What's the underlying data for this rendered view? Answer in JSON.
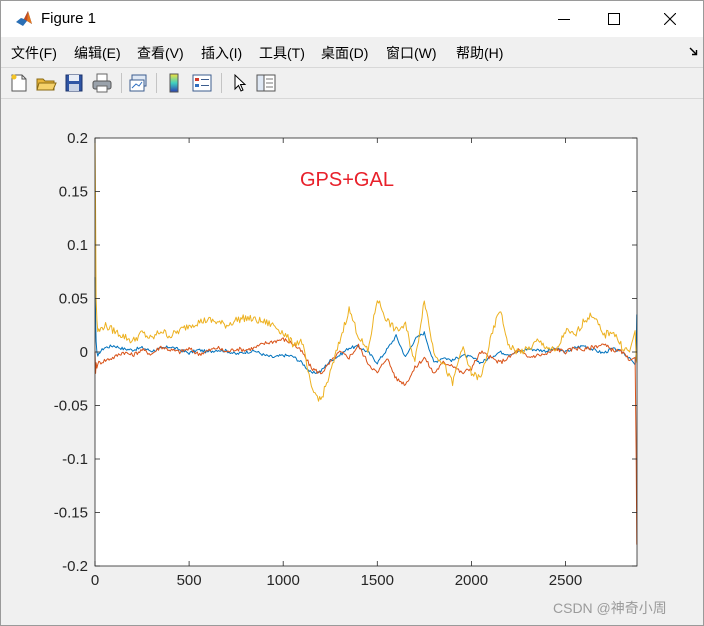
{
  "window": {
    "title": "Figure 1",
    "icon": "matlab-logo-icon",
    "controls": [
      "minimize-icon",
      "maximize-icon",
      "close-icon"
    ]
  },
  "menu": {
    "items": [
      "文件(F)",
      "编辑(E)",
      "查看(V)",
      "插入(I)",
      "工具(T)",
      "桌面(D)",
      "窗口(W)",
      "帮助(H)"
    ]
  },
  "toolbar": {
    "icons": [
      "new-figure-icon",
      "open-file-icon",
      "save-icon",
      "print-icon",
      "link-plot-icon",
      "insert-colorbar-icon",
      "insert-legend-icon",
      "pointer-icon",
      "plot-tools-icon"
    ]
  },
  "watermark": "CSDN @神奇小周",
  "colors": {
    "series1": "#0072BD",
    "series2": "#D95319",
    "series3": "#EDB120",
    "annotation": "#E8202A"
  },
  "chart_data": {
    "type": "line",
    "title": "",
    "annotation": "GPS+GAL",
    "xlabel": "",
    "ylabel": "",
    "xlim": [
      0,
      2880
    ],
    "ylim": [
      -0.2,
      0.2
    ],
    "xticks": [
      0,
      500,
      1000,
      1500,
      2000,
      2500
    ],
    "xtick_labels": [
      "0",
      "500",
      "1000",
      "1500",
      "2000",
      "2500"
    ],
    "yticks": [
      0.2,
      0.15,
      0.1,
      0.05,
      0,
      -0.05,
      -0.1,
      -0.15,
      -0.2
    ],
    "ytick_labels": [
      "0.2",
      "0.15",
      "0.1",
      "0.05",
      "0",
      "-0.05",
      "-0.1",
      "-0.15",
      "-0.2"
    ],
    "grid": false,
    "x": [
      0,
      3,
      6,
      10,
      15,
      25,
      50,
      100,
      150,
      200,
      250,
      300,
      350,
      400,
      450,
      500,
      550,
      600,
      650,
      700,
      750,
      800,
      850,
      900,
      950,
      1000,
      1050,
      1100,
      1150,
      1200,
      1250,
      1300,
      1350,
      1400,
      1450,
      1500,
      1550,
      1600,
      1650,
      1700,
      1750,
      1800,
      1850,
      1900,
      1950,
      2000,
      2050,
      2100,
      2150,
      2200,
      2250,
      2300,
      2350,
      2400,
      2450,
      2500,
      2550,
      2600,
      2650,
      2700,
      2750,
      2800,
      2840,
      2870,
      2876,
      2879
    ],
    "series": [
      {
        "values": [
          0.07,
          0.03,
          0.01,
          0.0,
          -0.005,
          0.0,
          0.004,
          0.006,
          0.003,
          0.002,
          0.004,
          0.001,
          0.003,
          0.005,
          0.002,
          -0.001,
          0.002,
          0.0,
          0.002,
          0.001,
          -0.002,
          0.0,
          0.001,
          -0.003,
          -0.005,
          -0.003,
          -0.004,
          -0.01,
          -0.02,
          -0.018,
          -0.008,
          -0.003,
          0.004,
          0.005,
          0.0,
          -0.01,
          0.002,
          0.015,
          -0.005,
          0.012,
          0.018,
          -0.01,
          -0.005,
          -0.008,
          -0.003,
          -0.005,
          -0.01,
          -0.005,
          0.0,
          -0.002,
          0.0,
          0.003,
          0.002,
          0.001,
          0.003,
          0.0,
          0.004,
          0.006,
          0.002,
          -0.001,
          0.003,
          0.0,
          -0.005,
          -0.012,
          0.0,
          0.035
        ]
      },
      {
        "values": [
          0.0,
          -0.02,
          -0.01,
          -0.015,
          -0.01,
          -0.01,
          -0.008,
          -0.005,
          0.0,
          -0.003,
          0.002,
          -0.002,
          0.005,
          0.002,
          0.0,
          0.003,
          -0.002,
          0.001,
          0.004,
          0.0,
          0.003,
          0.002,
          0.004,
          0.008,
          0.01,
          0.012,
          0.008,
          0.0,
          -0.015,
          -0.02,
          -0.01,
          0.0,
          -0.005,
          0.006,
          -0.01,
          -0.02,
          -0.005,
          -0.025,
          -0.03,
          -0.015,
          -0.005,
          -0.02,
          -0.01,
          -0.012,
          -0.02,
          -0.015,
          0.0,
          -0.005,
          -0.01,
          -0.005,
          0.002,
          -0.005,
          -0.003,
          -0.002,
          0.003,
          0.0,
          0.004,
          0.002,
          0.005,
          0.007,
          0.002,
          0.0,
          -0.008,
          -0.005,
          -0.1,
          -0.18
        ]
      },
      {
        "values": [
          0.2,
          0.13,
          0.05,
          0.03,
          0.02,
          0.02,
          0.025,
          0.02,
          0.015,
          0.01,
          0.018,
          0.012,
          0.02,
          0.015,
          0.02,
          0.025,
          0.028,
          0.03,
          0.028,
          0.025,
          0.03,
          0.032,
          0.03,
          0.028,
          0.025,
          0.018,
          0.008,
          0.01,
          -0.035,
          -0.045,
          -0.02,
          0.01,
          0.04,
          0.015,
          0.0,
          0.05,
          0.03,
          0.02,
          0.025,
          -0.01,
          0.05,
          0.0,
          -0.01,
          -0.03,
          0.005,
          -0.02,
          -0.025,
          0.01,
          0.04,
          0.005,
          0.0,
          0.002,
          0.01,
          0.005,
          0.0,
          0.02,
          0.015,
          0.03,
          0.035,
          0.015,
          0.02,
          0.005,
          0.0,
          0.02,
          -0.005,
          -0.01
        ]
      }
    ]
  }
}
